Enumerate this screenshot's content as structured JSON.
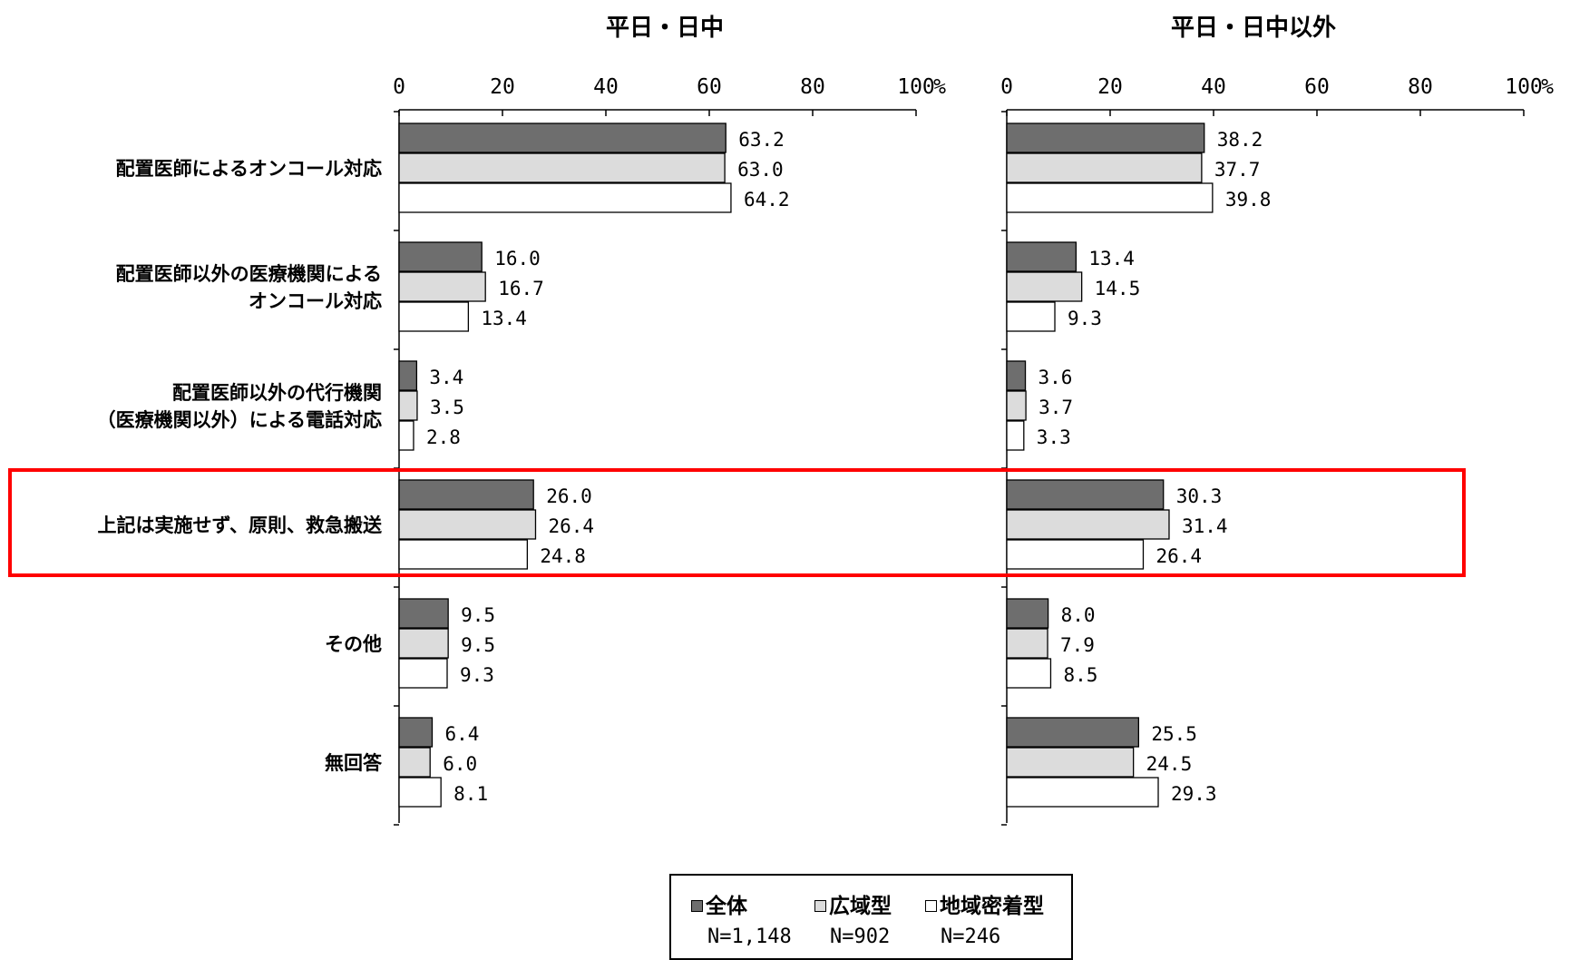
{
  "chart_data": {
    "type": "bar",
    "orientation": "horizontal",
    "unit": "%",
    "xlim": [
      0,
      100
    ],
    "ticks": [
      "0",
      "20",
      "40",
      "60",
      "80",
      "100"
    ],
    "categories": [
      [
        "配置医師によるオンコール対応"
      ],
      [
        "配置医師以外の医療機関による",
        "オンコール対応"
      ],
      [
        "配置医師以外の代行機関",
        "（医療機関以外）による電話対応"
      ],
      [
        "上記は実施せず、原則、救急搬送"
      ],
      [
        "その他"
      ],
      [
        "無回答"
      ]
    ],
    "series": [
      {
        "name": "全体",
        "color": "#6e6e6e"
      },
      {
        "name": "広域型",
        "color": "#dcdcdc"
      },
      {
        "name": "地域密着型",
        "color": "#ffffff"
      }
    ],
    "panels": [
      {
        "title": "平日・日中",
        "values": [
          [
            "63.2",
            "63.0",
            "64.2"
          ],
          [
            "16.0",
            "16.7",
            "13.4"
          ],
          [
            "3.4",
            "3.5",
            "2.8"
          ],
          [
            "26.0",
            "26.4",
            "24.8"
          ],
          [
            "9.5",
            "9.5",
            "9.3"
          ],
          [
            "6.4",
            "6.0",
            "8.1"
          ]
        ]
      },
      {
        "title": "平日・日中以外",
        "values": [
          [
            "38.2",
            "37.7",
            "39.8"
          ],
          [
            "13.4",
            "14.5",
            "9.3"
          ],
          [
            "3.6",
            "3.7",
            "3.3"
          ],
          [
            "30.3",
            "31.4",
            "26.4"
          ],
          [
            "8.0",
            "7.9",
            "8.5"
          ],
          [
            "25.5",
            "24.5",
            "29.3"
          ]
        ]
      }
    ],
    "highlighted_category_index": 3,
    "highlight_color": "#ff0000"
  },
  "legend": {
    "items": [
      {
        "name": "全体",
        "n": "N=1,148"
      },
      {
        "name": "広域型",
        "n": "N=902"
      },
      {
        "name": "地域密着型",
        "n": "N=246"
      }
    ]
  }
}
